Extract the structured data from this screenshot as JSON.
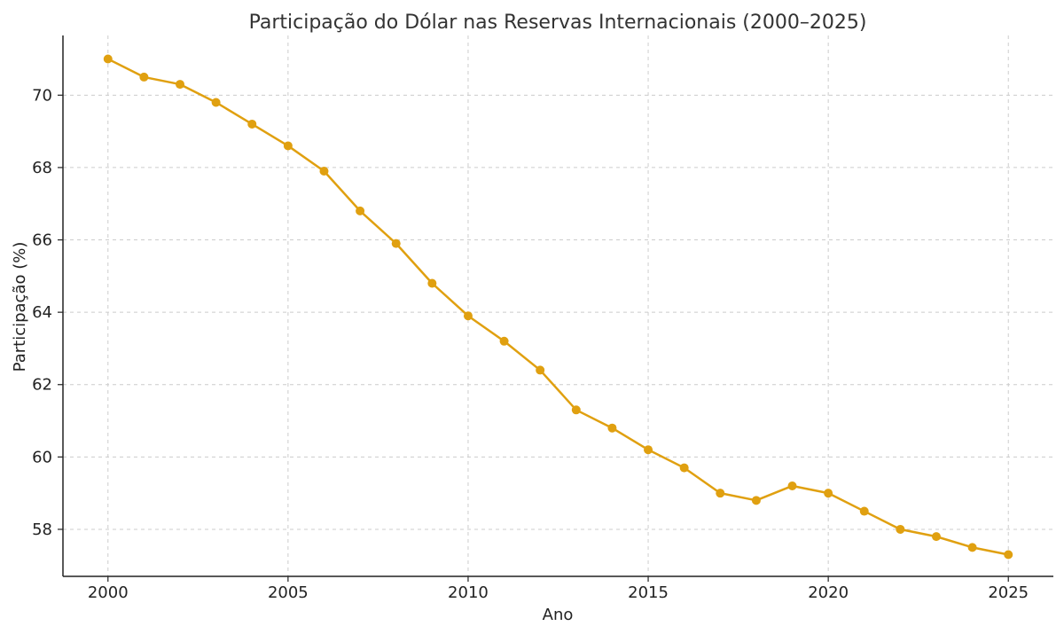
{
  "chart_data": {
    "type": "line",
    "title": "Participação do Dólar nas Reservas Internacionais (2000–2025)",
    "xlabel": "Ano",
    "ylabel": "Participação (%)",
    "xlim": [
      1998.75,
      2026.25
    ],
    "ylim": [
      56.7,
      71.65
    ],
    "xticks": [
      2000,
      2005,
      2010,
      2015,
      2020,
      2025
    ],
    "yticks": [
      58,
      60,
      62,
      64,
      66,
      68,
      70
    ],
    "grid": true,
    "series": [
      {
        "color": "#E0A010",
        "x": [
          2000,
          2001,
          2002,
          2003,
          2004,
          2005,
          2006,
          2007,
          2008,
          2009,
          2010,
          2011,
          2012,
          2013,
          2014,
          2015,
          2016,
          2017,
          2018,
          2019,
          2020,
          2021,
          2022,
          2023,
          2024,
          2025
        ],
        "y": [
          71.0,
          70.5,
          70.3,
          69.8,
          69.2,
          68.6,
          67.9,
          66.8,
          65.9,
          64.8,
          63.9,
          63.2,
          62.4,
          61.3,
          60.8,
          60.2,
          59.7,
          59.0,
          58.8,
          59.2,
          59.0,
          58.5,
          58.0,
          57.8,
          57.5,
          57.3
        ]
      }
    ]
  }
}
